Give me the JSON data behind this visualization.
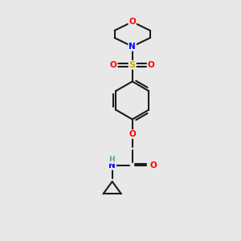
{
  "bg_color": "#e8e8e8",
  "bond_color": "#1a1a1a",
  "atom_colors": {
    "O": "#ff0000",
    "N": "#0000ff",
    "S": "#ccaa00",
    "H": "#5f9ea0",
    "C": "#1a1a1a"
  }
}
